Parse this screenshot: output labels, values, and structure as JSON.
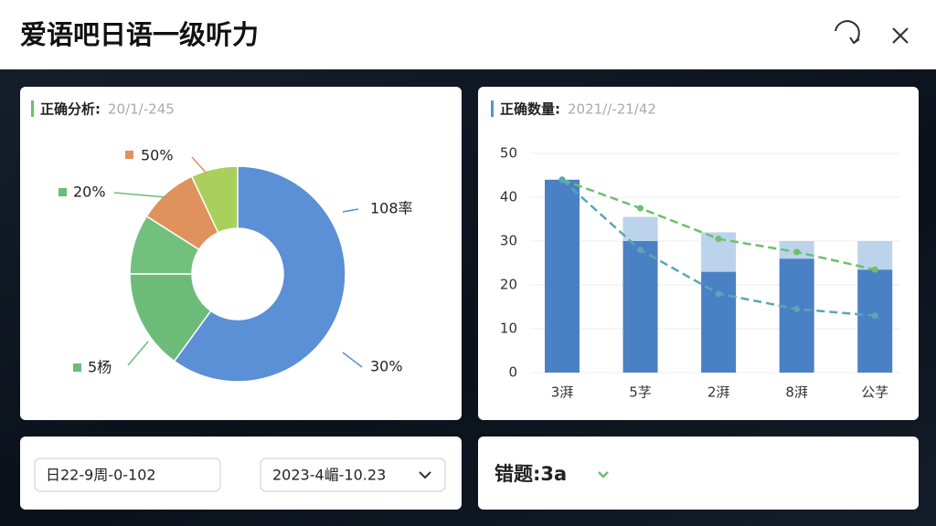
{
  "header": {
    "title": "爱语吧日语一级听力"
  },
  "chart_data": [
    {
      "type": "pie",
      "donut": true,
      "title": "正确分析:",
      "subtitle": "20/1/-245",
      "values": [
        60,
        15,
        9,
        9,
        7
      ],
      "colors": [
        "#5b8fd6",
        "#6dbb78",
        "#72c07e",
        "#e0925c",
        "#a9cf5c"
      ],
      "annotations": [
        {
          "text": "50%",
          "color": "#e0925c"
        },
        {
          "text": "20%",
          "color": "#6dbb78"
        },
        {
          "text": "108率",
          "color": "#5b8fd6"
        },
        {
          "text": "30%",
          "color": "#5b8fd6"
        },
        {
          "text": "5杨",
          "color": "#6dbb78"
        }
      ]
    },
    {
      "type": "bar",
      "stacked": true,
      "title": "正确数量:",
      "subtitle": "2021//-21/42",
      "categories": [
        "3湃",
        "5芓",
        "2湃",
        "8湃",
        "公芓"
      ],
      "ylim": [
        0,
        50
      ],
      "yticks": [
        0,
        10,
        20,
        30,
        40,
        50
      ],
      "grid": true,
      "series": [
        {
          "color": "#4a80c4",
          "values": [
            44,
            30,
            23,
            26,
            23.5
          ]
        },
        {
          "color": "#bcd3ec",
          "values": [
            0,
            5.5,
            9,
            4,
            6.5
          ]
        },
        {
          "type": "line",
          "dashed": true,
          "color": "#6cc06c",
          "values": [
            44,
            37.5,
            30.5,
            27.5,
            23.5
          ]
        },
        {
          "type": "line",
          "dashed": true,
          "color": "#5aa6b8",
          "values": [
            44,
            28,
            18,
            14.5,
            13
          ]
        }
      ]
    }
  ],
  "filters": {
    "start": "日22-9周-0-102",
    "end": "2023-4嵋-10.23"
  },
  "errors": {
    "label": "错题:3a"
  }
}
